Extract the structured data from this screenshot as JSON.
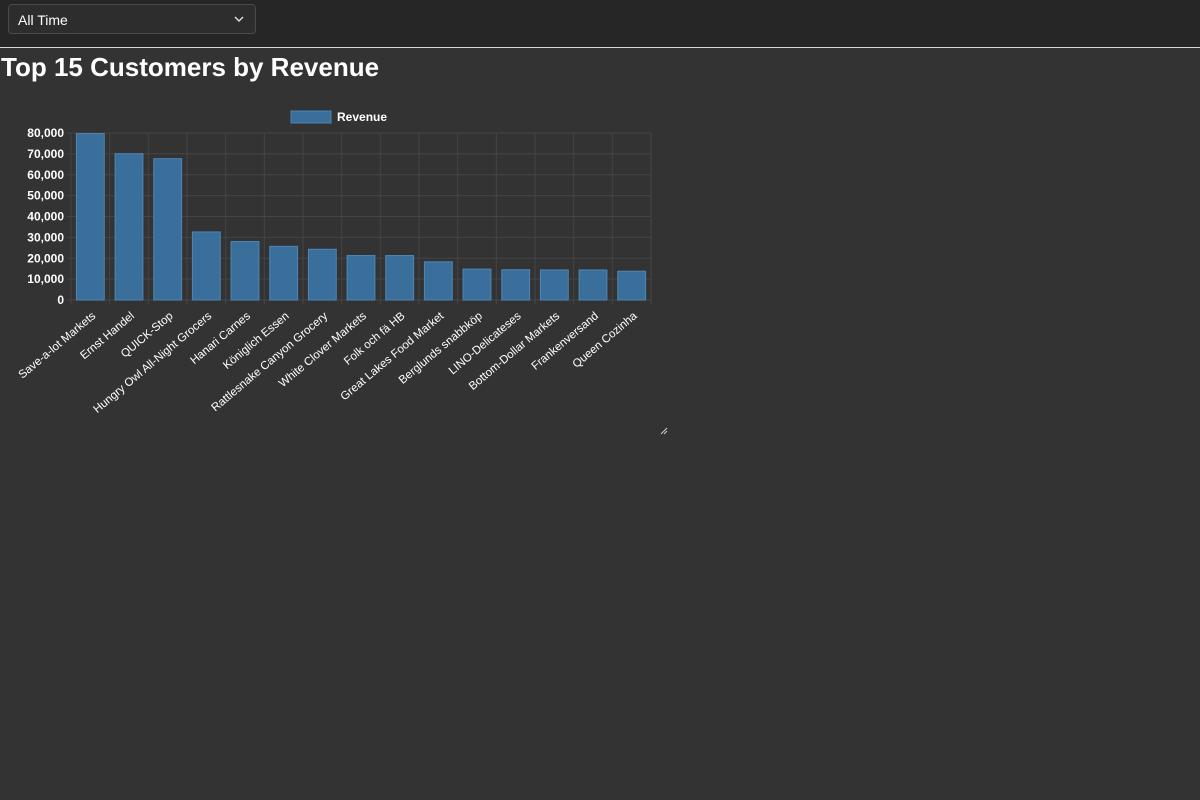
{
  "filter": {
    "selected": "All Time"
  },
  "page_title": "Top 15 Customers by Revenue",
  "colors": {
    "bar": "#3a6f9c",
    "bar_border": "#4d86b5",
    "grid": "#444444",
    "text": "#ffffff"
  },
  "chart_data": {
    "type": "bar",
    "title": "",
    "xlabel": "",
    "ylabel": "",
    "legend": {
      "position": "top-center",
      "entries": [
        "Revenue"
      ]
    },
    "grid": true,
    "ylim": [
      0,
      80000
    ],
    "yticks": [
      0,
      10000,
      20000,
      30000,
      40000,
      50000,
      60000,
      70000,
      80000
    ],
    "ytick_labels": [
      "0",
      "10,000",
      "20,000",
      "30,000",
      "40,000",
      "50,000",
      "60,000",
      "70,000",
      "80,000"
    ],
    "categories": [
      "Save-a-lot Markets",
      "Ernst Handel",
      "QUICK-Stop",
      "Hungry Owl All-Night Grocers",
      "Hanari Carnes",
      "Königlich Essen",
      "Rattlesnake Canyon Grocery",
      "White Clover Markets",
      "Folk och fä HB",
      "Great Lakes Food Market",
      "Berglunds snabbköp",
      "LINO-Delicateses",
      "Bottom-Dollar Markets",
      "Frankenversand",
      "Queen Cozinha"
    ],
    "series": [
      {
        "name": "Revenue",
        "values": [
          79700,
          70100,
          67700,
          32600,
          28000,
          25700,
          24300,
          21300,
          21300,
          18300,
          14800,
          14500,
          14400,
          14400,
          13800
        ]
      }
    ]
  }
}
